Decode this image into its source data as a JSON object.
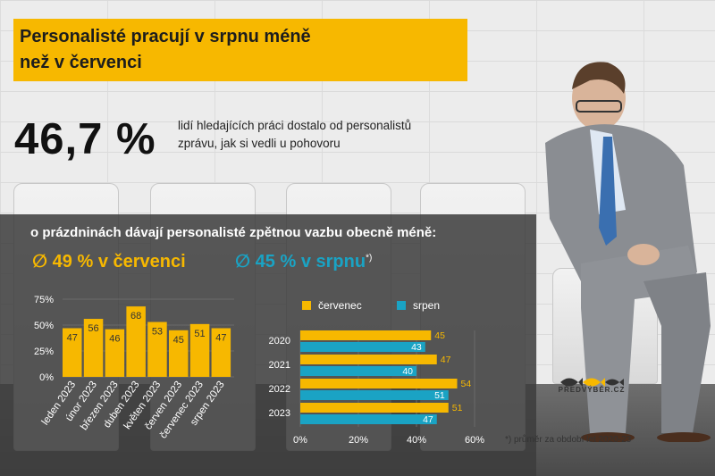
{
  "headline": {
    "title_line1": "Personalisté pracují v srpnu méně",
    "title_line2": "než v červenci"
  },
  "stat": {
    "value": "46,7 %",
    "text_line1": "lidí hledajících práci dostalo od personalistů",
    "text_line2": "zprávu, jak si vedli u  pohovoru"
  },
  "summary": {
    "subheading": "o prázdninách dávají personalisté zpětnou vazbu obecně méně:",
    "avg_july": "∅ 49 % v červenci",
    "avg_august": "∅ 45 % v srpnu",
    "avg_august_mark": "*)"
  },
  "footnote": "*) průměr za období let 2020-23",
  "logo": {
    "text": "PŘEDVÝBĚR.CZ"
  },
  "colors": {
    "accent": "#f7b800",
    "teal": "#1aa3c4",
    "panel": "#3c3c3c"
  },
  "chart_data": [
    {
      "type": "bar",
      "categories": [
        "leden 2023",
        "únor 2023",
        "březen 2023",
        "duben 2023",
        "květen 2023",
        "červen 2023",
        "červenec 2023",
        "srpen 2023"
      ],
      "values": [
        47,
        56,
        46,
        68,
        53,
        45,
        51,
        47
      ],
      "yticks": [
        "75%",
        "50%",
        "25%",
        "0%"
      ],
      "ytick_values": [
        75,
        50,
        25,
        0
      ],
      "ylim": [
        0,
        75
      ],
      "color": "#f7b800"
    },
    {
      "type": "bar",
      "orientation": "horizontal",
      "categories": [
        "2020",
        "2021",
        "2022",
        "2023"
      ],
      "series": [
        {
          "name": "červenec",
          "values": [
            45,
            47,
            54,
            51
          ],
          "color": "#f7b800"
        },
        {
          "name": "srpen",
          "values": [
            43,
            40,
            51,
            47
          ],
          "color": "#1aa3c4"
        }
      ],
      "xticks": [
        "0%",
        "20%",
        "40%",
        "60%"
      ],
      "xtick_values": [
        0,
        20,
        40,
        60
      ],
      "xlim": [
        0,
        60
      ],
      "legend": "top"
    }
  ]
}
